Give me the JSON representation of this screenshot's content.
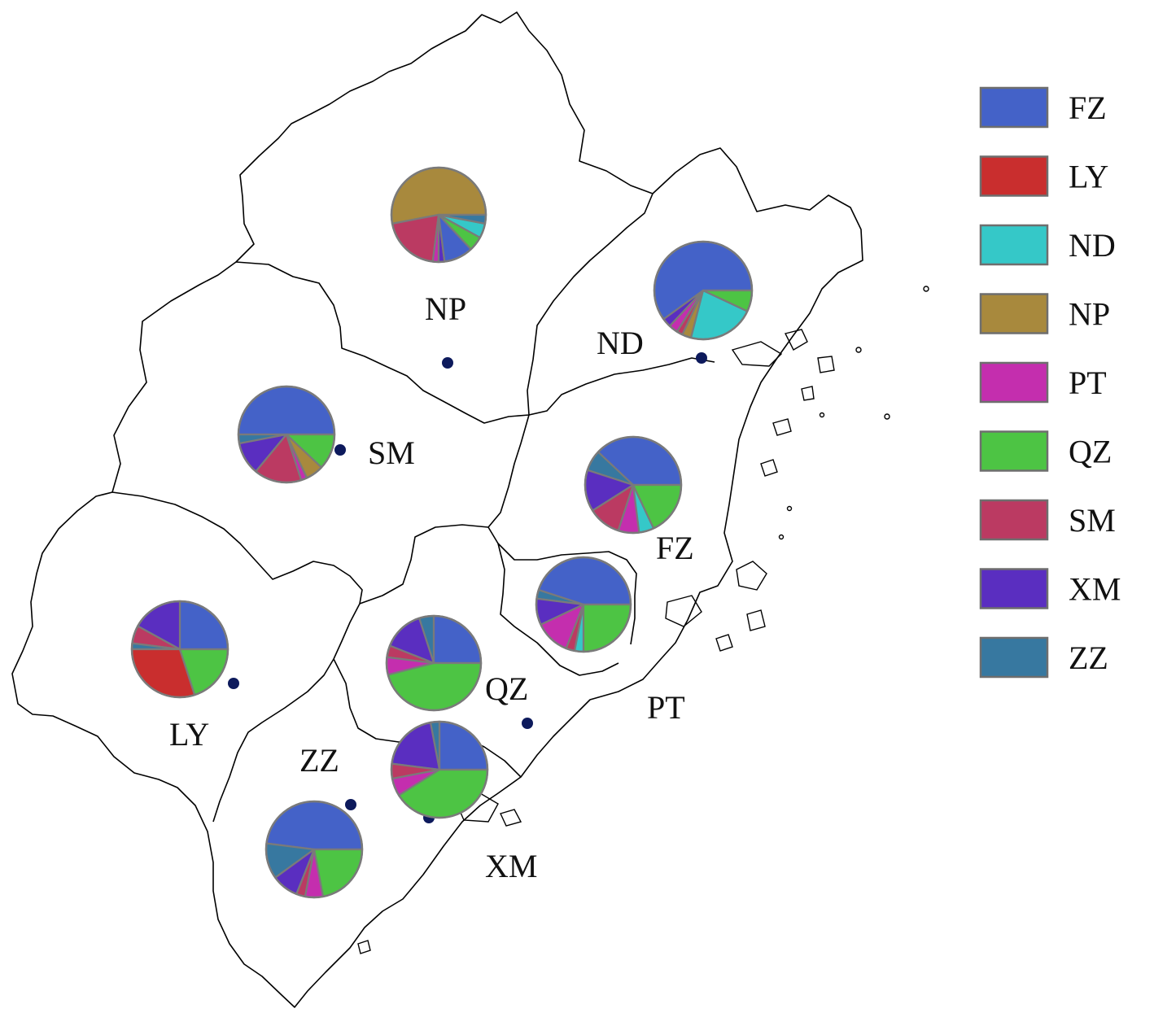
{
  "legend": [
    {
      "code": "FZ",
      "color": "#4462C8"
    },
    {
      "code": "LY",
      "color": "#C92E2E"
    },
    {
      "code": "ND",
      "color": "#35C8C8"
    },
    {
      "code": "NP",
      "color": "#A8893D"
    },
    {
      "code": "PT",
      "color": "#C42EAE"
    },
    {
      "code": "QZ",
      "color": "#4DC444"
    },
    {
      "code": "SM",
      "color": "#BB3A62"
    },
    {
      "code": "XM",
      "color": "#5A2EC0"
    },
    {
      "code": "ZZ",
      "color": "#3778A0"
    }
  ],
  "regions": [
    {
      "code": "NP"
    },
    {
      "code": "ND"
    },
    {
      "code": "SM"
    },
    {
      "code": "FZ"
    },
    {
      "code": "LY"
    },
    {
      "code": "QZ"
    },
    {
      "code": "PT"
    },
    {
      "code": "ZZ"
    },
    {
      "code": "XM"
    }
  ],
  "pies": [
    {
      "region": "NP",
      "slices": {
        "NP": 0.53,
        "SM": 0.2,
        "PT": 0.02,
        "XM": 0.02,
        "FZ": 0.1,
        "QZ": 0.05,
        "ND": 0.05,
        "ZZ": 0.03
      }
    },
    {
      "region": "ND",
      "slices": {
        "FZ": 0.6,
        "XM": 0.03,
        "PT": 0.03,
        "SM": 0.02,
        "NP": 0.03,
        "ND": 0.22,
        "QZ": 0.07
      }
    },
    {
      "region": "SM",
      "slices": {
        "FZ": 0.5,
        "ZZ": 0.03,
        "XM": 0.11,
        "SM": 0.16,
        "PT": 0.02,
        "NP": 0.06,
        "QZ": 0.12
      }
    },
    {
      "region": "FZ",
      "slices": {
        "FZ": 0.38,
        "ZZ": 0.07,
        "XM": 0.14,
        "SM": 0.11,
        "PT": 0.07,
        "ND": 0.05,
        "QZ": 0.18
      }
    },
    {
      "region": "LY",
      "slices": {
        "FZ": 0.25,
        "XM": 0.17,
        "SM": 0.06,
        "ZZ": 0.02,
        "LY": 0.3,
        "QZ": 0.2
      }
    },
    {
      "region": "QZ",
      "slices": {
        "FZ": 0.25,
        "ZZ": 0.05,
        "XM": 0.14,
        "SM": 0.04,
        "PT": 0.06,
        "QZ": 0.46
      }
    },
    {
      "region": "PT",
      "slices": {
        "FZ": 0.45,
        "ZZ": 0.03,
        "XM": 0.09,
        "PT": 0.12,
        "SM": 0.03,
        "ND": 0.03,
        "QZ": 0.25
      }
    },
    {
      "region": "XM",
      "slices": {
        "FZ": 0.25,
        "ZZ": 0.03,
        "XM": 0.2,
        "SM": 0.05,
        "PT": 0.06,
        "QZ": 0.41
      }
    },
    {
      "region": "ZZ",
      "slices": {
        "FZ": 0.48,
        "ZZ": 0.12,
        "XM": 0.09,
        "SM": 0.03,
        "PT": 0.06,
        "QZ": 0.22
      }
    }
  ],
  "colors": {
    "pie_edge": "#7A7A7A",
    "dot": "#0D1A5C",
    "boundary": "#000000"
  }
}
